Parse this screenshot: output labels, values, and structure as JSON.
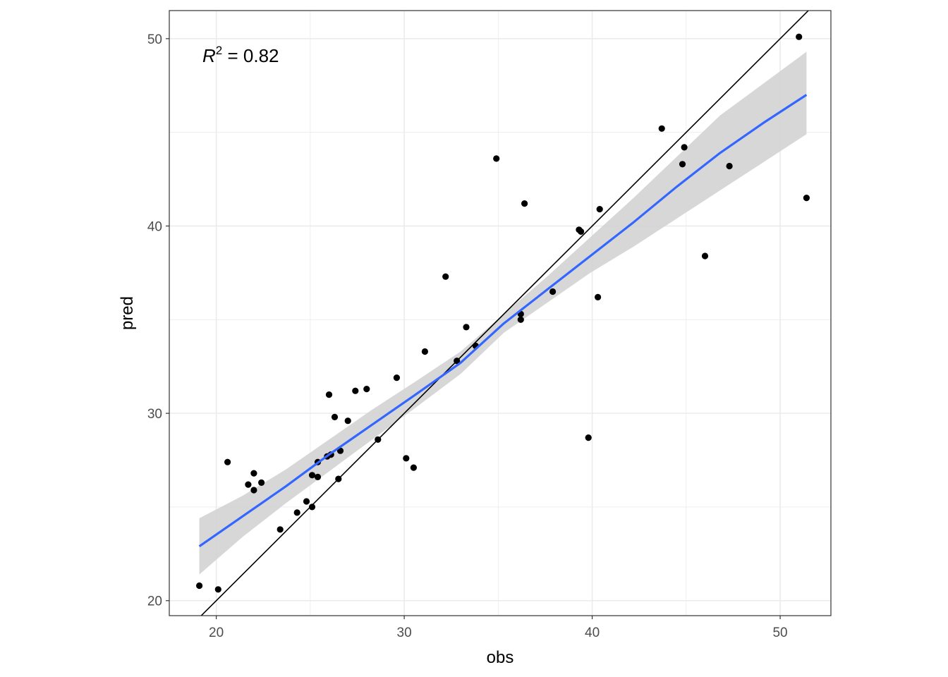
{
  "chart_data": {
    "type": "scatter",
    "title": "",
    "xlabel": "obs",
    "ylabel": "pred",
    "xlim": [
      17.5,
      52.7
    ],
    "ylim": [
      19.2,
      51.5
    ],
    "x_ticks": [
      20,
      30,
      40,
      50
    ],
    "y_ticks": [
      20,
      30,
      40,
      50
    ],
    "x_tick_labels": [
      "20",
      "30",
      "40",
      "50"
    ],
    "y_tick_labels": [
      "20",
      "30",
      "40",
      "50"
    ],
    "grid": true,
    "annotation": {
      "symbol": "R",
      "superscript": "2",
      "text": " = 0.82"
    },
    "points": [
      [
        19.1,
        20.8
      ],
      [
        20.1,
        20.6
      ],
      [
        20.6,
        27.4
      ],
      [
        21.7,
        26.2
      ],
      [
        22.0,
        26.8
      ],
      [
        22.0,
        25.9
      ],
      [
        22.4,
        26.3
      ],
      [
        23.4,
        23.8
      ],
      [
        24.3,
        24.7
      ],
      [
        24.8,
        25.3
      ],
      [
        25.1,
        26.7
      ],
      [
        25.1,
        25.0
      ],
      [
        25.4,
        27.4
      ],
      [
        25.4,
        26.6
      ],
      [
        25.9,
        27.7
      ],
      [
        26.1,
        27.8
      ],
      [
        26.0,
        31.0
      ],
      [
        26.3,
        29.8
      ],
      [
        26.5,
        26.5
      ],
      [
        26.6,
        28.0
      ],
      [
        27.0,
        29.6
      ],
      [
        27.4,
        31.2
      ],
      [
        28.0,
        31.3
      ],
      [
        28.6,
        28.6
      ],
      [
        29.6,
        31.9
      ],
      [
        30.1,
        27.6
      ],
      [
        30.5,
        27.1
      ],
      [
        31.1,
        33.3
      ],
      [
        32.2,
        37.3
      ],
      [
        32.8,
        32.8
      ],
      [
        33.3,
        34.6
      ],
      [
        33.8,
        33.6
      ],
      [
        34.9,
        43.6
      ],
      [
        36.2,
        35.3
      ],
      [
        36.2,
        35.0
      ],
      [
        36.4,
        41.2
      ],
      [
        37.9,
        36.5
      ],
      [
        39.3,
        39.8
      ],
      [
        39.4,
        39.7
      ],
      [
        39.8,
        28.7
      ],
      [
        40.3,
        36.2
      ],
      [
        40.4,
        40.9
      ],
      [
        43.7,
        45.2
      ],
      [
        44.8,
        43.3
      ],
      [
        44.9,
        44.2
      ],
      [
        46.0,
        38.4
      ],
      [
        47.3,
        43.2
      ],
      [
        51.0,
        50.1
      ],
      [
        51.4,
        41.5
      ]
    ],
    "smooth": {
      "x": [
        19.1,
        21.4,
        23.7,
        26.0,
        28.3,
        30.6,
        33.0,
        35.3,
        37.6,
        39.9,
        42.2,
        44.5,
        46.8,
        49.1,
        51.4
      ],
      "y": [
        22.9,
        24.5,
        26.1,
        27.8,
        29.4,
        31.0,
        32.7,
        34.8,
        36.6,
        38.4,
        40.2,
        42.1,
        43.9,
        45.5,
        47.0
      ],
      "lower": [
        21.4,
        23.4,
        25.2,
        26.9,
        28.6,
        30.3,
        32.1,
        34.3,
        35.9,
        37.5,
        38.9,
        40.4,
        41.9,
        43.4,
        44.9
      ],
      "upper": [
        24.4,
        25.6,
        27.0,
        28.6,
        30.2,
        31.7,
        33.3,
        35.3,
        37.3,
        39.4,
        41.5,
        43.7,
        45.9,
        47.6,
        49.3
      ]
    },
    "identity_line": {
      "slope": 1,
      "intercept": 0
    },
    "colors": {
      "points": "#000000",
      "smooth": "#3366ff",
      "ribbon": "#d3d3d3",
      "identity": "#000000",
      "grid": "#ebebeb",
      "panel_border": "#333333"
    }
  }
}
